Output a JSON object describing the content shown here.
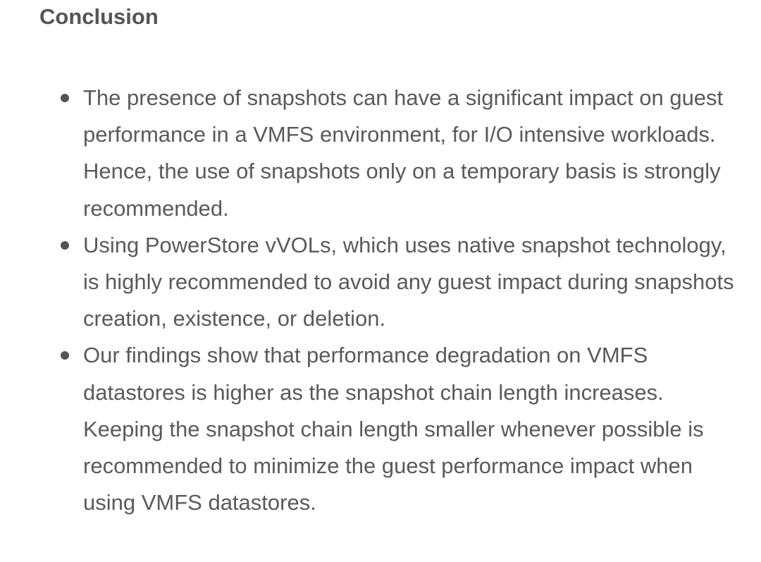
{
  "section": {
    "heading": "Conclusion",
    "bullets": [
      {
        "text": "The presence of snapshots can have a significant impact on guest performance in a VMFS environment, for I/O intensive workloads. Hence, the use of snapshots only on a temporary basis is strongly recommended."
      },
      {
        "text": "Using PowerStore vVOLs, which uses native snapshot technology, is highly recommended to avoid any guest impact during snapshots creation, existence, or deletion."
      },
      {
        "text": "Our findings show that performance degradation on VMFS datastores is higher as the snapshot chain length increases. Keeping the snapshot chain length smaller whenever possible is recommended to minimize the guest performance impact when using VMFS datastores."
      }
    ]
  }
}
